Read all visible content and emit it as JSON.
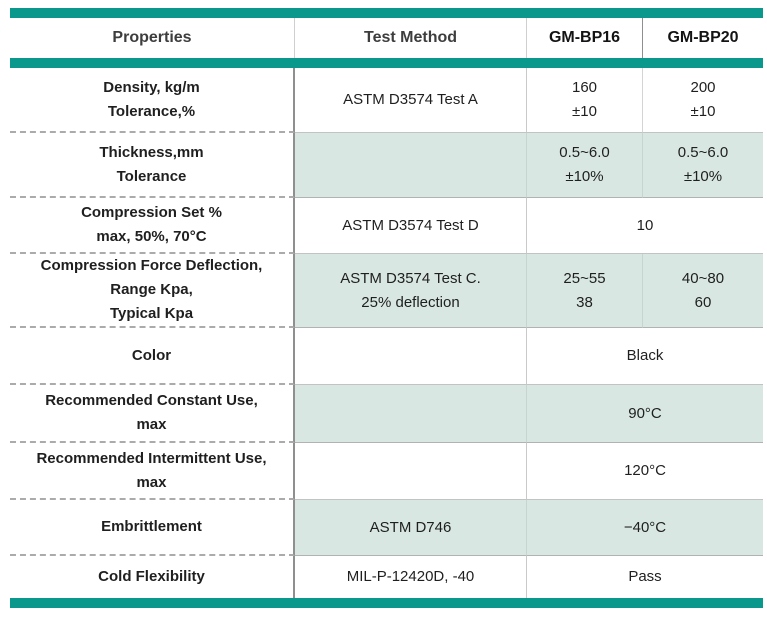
{
  "theme": {
    "accent_teal": "#0a988c",
    "row_shade": "#d8e7e1"
  },
  "header": {
    "col_properties": "Properties",
    "col_test_method": "Test Method",
    "col_gm_bp16": "GM-BP16",
    "col_gm_bp20": "GM-BP20"
  },
  "rows": [
    {
      "property": "Density, kg/m\nTolerance,%",
      "method": "ASTM D3574 Test A",
      "gm_bp16": "160\n±10",
      "gm_bp20": "200\n±10"
    },
    {
      "property": "Thickness,mm\nTolerance",
      "method": "",
      "gm_bp16": "0.5~6.0\n±10%",
      "gm_bp20": "0.5~6.0\n±10%"
    },
    {
      "property": "Compression Set %\nmax, 50%, 70°C",
      "method": "ASTM D3574 Test D",
      "value": "10"
    },
    {
      "property": "Compression Force Deflection,\nRange Kpa,\nTypical Kpa",
      "method": "ASTM D3574 Test C.\n25% deflection",
      "gm_bp16": "25~55\n38",
      "gm_bp20": "40~80\n60"
    },
    {
      "property": "Color",
      "method": "",
      "value": "Black"
    },
    {
      "property": "Recommended Constant Use,\nmax",
      "method": "",
      "value": "90°C"
    },
    {
      "property": "Recommended Intermittent Use,\nmax",
      "method": "",
      "value": "120°C"
    },
    {
      "property": "Embrittlement",
      "method": "ASTM D746",
      "value": "−40°C"
    },
    {
      "property": "Cold Flexibility",
      "method": "MIL-P-12420D, -40",
      "value": "Pass"
    }
  ]
}
